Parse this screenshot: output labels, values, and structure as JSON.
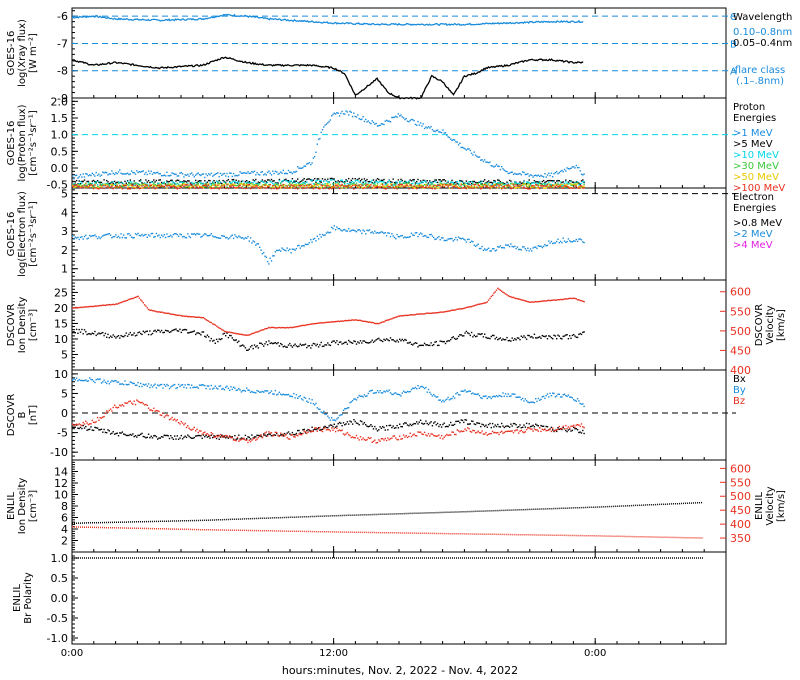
{
  "x_axis": {
    "ticks": [
      "0:00",
      "12:00",
      "0:00"
    ],
    "tick_hours": [
      0,
      12,
      24
    ],
    "range_hours": [
      0,
      30
    ],
    "title": "hours:minutes, Nov.  2, 2022 - Nov.  4, 2022"
  },
  "panels": [
    {
      "id": "xray",
      "ylabel": [
        "GOES-16",
        "log(Xray flux)",
        "[W m⁻²]"
      ],
      "yticks": [
        "-6",
        "-7",
        "-8",
        "-9"
      ],
      "ytick_values": [
        -6,
        -7,
        -8,
        -9
      ],
      "ylim": [
        -9.0,
        -5.7
      ],
      "hlines": [
        {
          "value": -6,
          "color": "#1a8cdc",
          "right_label": "C"
        },
        {
          "value": -7,
          "color": "#1a8cdc",
          "right_label": "B"
        },
        {
          "value": -8,
          "color": "#1a8cdc",
          "right_label": "A"
        }
      ],
      "legend_title": "Wavelength",
      "legend": [
        {
          "text": "0.10–0.8nm",
          "color": "#1a8cdc"
        },
        {
          "text": "0.05–0.4nm",
          "color": "#000000"
        }
      ],
      "note": [
        "flare class",
        "(.1–.8nm)"
      ],
      "note_color": "#1a8cdc"
    },
    {
      "id": "proton",
      "ylabel": [
        "GOES-16",
        "log(Proton flux)",
        "[cm⁻²s⁻¹sr⁻¹]"
      ],
      "yticks": [
        "2.0",
        "1.5",
        "1.0",
        "0.5",
        "0.0",
        "-0.5"
      ],
      "ytick_values": [
        2.0,
        1.5,
        1.0,
        0.5,
        0.0,
        -0.5
      ],
      "ylim": [
        -0.6,
        2.1
      ],
      "hlines": [
        {
          "value": 1.0,
          "color": "#00d8e8"
        }
      ],
      "legend_title": "Proton Energies",
      "legend": [
        {
          "text": ">1 MeV",
          "color": "#1a8cdc"
        },
        {
          "text": ">5 MeV",
          "color": "#000000"
        },
        {
          "text": ">10 MeV",
          "color": "#00d8e8"
        },
        {
          "text": ">30 MeV",
          "color": "#3cc83c"
        },
        {
          "text": ">50 MeV",
          "color": "#e8c800"
        },
        {
          "text": ">100 MeV",
          "color": "#e83020"
        }
      ]
    },
    {
      "id": "electron",
      "ylabel": [
        "GOES-16",
        "log(Electron flux)",
        "[cm⁻²s⁻¹sr⁻¹]"
      ],
      "yticks": [
        "5",
        "4",
        "3",
        "2",
        "1"
      ],
      "ytick_values": [
        5,
        4,
        3,
        2,
        1
      ],
      "ylim": [
        0.4,
        5.3
      ],
      "hlines": [
        {
          "value": 5.0,
          "color": "#000000"
        }
      ],
      "legend_title": "Electron Energies",
      "legend": [
        {
          "text": ">0.8 MeV",
          "color": "#000000"
        },
        {
          "text": ">2 MeV",
          "color": "#1a8cdc"
        },
        {
          "text": ">4 MeV",
          "color": "#e020e0"
        }
      ]
    },
    {
      "id": "dscovr_plasma",
      "ylabel": [
        "DSCOVR",
        "Ion Density",
        "[cm⁻³]"
      ],
      "yticks": [
        "25",
        "20",
        "15",
        "10",
        "5"
      ],
      "ytick_values": [
        25,
        20,
        15,
        10,
        5
      ],
      "ylim": [
        0,
        29
      ],
      "right_ylabel": [
        "DSCOVR",
        "Velocity",
        "[km/s]"
      ],
      "right_yticks": [
        "600",
        "550",
        "500",
        "450",
        "400"
      ],
      "right_ytick_values": [
        600,
        550,
        500,
        450,
        400
      ],
      "right_ylim": [
        400,
        630
      ],
      "right_color": "#e83020"
    },
    {
      "id": "dscovr_mag",
      "ylabel": [
        "DSCOVR",
        "B",
        "[nT]"
      ],
      "yticks": [
        "10",
        "5",
        "0",
        "-5",
        "-10"
      ],
      "ytick_values": [
        10,
        5,
        0,
        -5,
        -10
      ],
      "ylim": [
        -12,
        11
      ],
      "hlines": [
        {
          "value": 0,
          "color": "#000000"
        }
      ],
      "legend": [
        {
          "text": "Bx",
          "color": "#000000"
        },
        {
          "text": "By",
          "color": "#1a8cdc"
        },
        {
          "text": "Bz",
          "color": "#e83020"
        }
      ]
    },
    {
      "id": "enlil_plasma",
      "ylabel": [
        "ENLIL",
        "Ion Density",
        "[cm⁻³]"
      ],
      "yticks": [
        "14",
        "12",
        "10",
        "8",
        "6",
        "4",
        "2"
      ],
      "ytick_values": [
        14,
        12,
        10,
        8,
        6,
        4,
        2
      ],
      "ylim": [
        0,
        16
      ],
      "right_ylabel": [
        "ENLIL",
        "Velocity",
        "[km/s]"
      ],
      "right_yticks": [
        "600",
        "550",
        "500",
        "450",
        "400",
        "350"
      ],
      "right_ytick_values": [
        600,
        550,
        500,
        450,
        400,
        350
      ],
      "right_ylim": [
        300,
        630
      ],
      "right_color": "#e83020"
    },
    {
      "id": "enlil_polarity",
      "ylabel": [
        "ENLIL",
        "Br Polarity"
      ],
      "yticks": [
        "1.0",
        "0.5",
        "0.0",
        "-0.5",
        "-1.0"
      ],
      "ytick_values": [
        1.0,
        0.5,
        0.0,
        -0.5,
        -1.0
      ],
      "ylim": [
        -1.15,
        1.15
      ]
    }
  ],
  "chart_data": [
    {
      "type": "line",
      "panel": "xray",
      "x_units": "hours since Nov 2, 2022 0:00",
      "series": [
        {
          "name": "0.10–0.8nm",
          "color": "#1a8cdc",
          "x": [
            0,
            1,
            2,
            4,
            6,
            7,
            8,
            9,
            10,
            12,
            14,
            16,
            18,
            20,
            22,
            23.5
          ],
          "y": [
            -6.05,
            -6.0,
            -6.1,
            -6.15,
            -6.1,
            -5.95,
            -6.0,
            -6.1,
            -6.15,
            -6.25,
            -6.3,
            -6.3,
            -6.3,
            -6.25,
            -6.2,
            -6.2
          ]
        },
        {
          "name": "0.05–0.4nm",
          "color": "#000000",
          "x": [
            0,
            1,
            2,
            3,
            4,
            6,
            7,
            8,
            9,
            10,
            11,
            12,
            12.5,
            13,
            13.5,
            14,
            14.5,
            15,
            16,
            16.5,
            17,
            17.5,
            18,
            18.5,
            19,
            20,
            21,
            22,
            23,
            23.5
          ],
          "y": [
            -7.6,
            -7.8,
            -7.7,
            -7.8,
            -7.9,
            -7.8,
            -7.5,
            -7.7,
            -7.8,
            -7.8,
            -7.8,
            -7.9,
            -8.1,
            -8.9,
            -8.6,
            -8.3,
            -8.8,
            -9.0,
            -9.0,
            -8.2,
            -8.4,
            -8.9,
            -8.2,
            -8.1,
            -7.9,
            -7.8,
            -7.6,
            -7.6,
            -7.7,
            -7.7
          ]
        }
      ]
    },
    {
      "type": "scatter",
      "panel": "proton",
      "series": [
        {
          "name": ">1 MeV",
          "color": "#1a8cdc",
          "x": [
            0,
            2,
            4,
            6,
            8,
            10,
            11,
            11.5,
            12,
            12.5,
            13,
            14,
            15,
            16,
            17,
            18,
            19,
            20,
            21,
            22,
            23,
            23.5
          ],
          "y": [
            -0.25,
            -0.1,
            -0.15,
            -0.2,
            -0.15,
            -0.1,
            0.2,
            1.3,
            1.6,
            1.7,
            1.6,
            1.3,
            1.6,
            1.3,
            1.1,
            0.6,
            0.2,
            -0.1,
            -0.2,
            -0.2,
            0.1,
            -0.2
          ]
        },
        {
          "name": ">5 MeV",
          "color": "#000000",
          "x": [
            0,
            6,
            12,
            18,
            23.5
          ],
          "y": [
            -0.4,
            -0.4,
            -0.35,
            -0.4,
            -0.4
          ]
        },
        {
          "name": ">10 MeV",
          "color": "#00d8e8",
          "x": [
            0,
            6,
            12,
            18,
            23.5
          ],
          "y": [
            -0.45,
            -0.45,
            -0.4,
            -0.45,
            -0.45
          ]
        },
        {
          "name": ">30 MeV",
          "color": "#3cc83c",
          "x": [
            0,
            6,
            12,
            18,
            23.5
          ],
          "y": [
            -0.5,
            -0.5,
            -0.5,
            -0.5,
            -0.5
          ]
        },
        {
          "name": ">50 MeV",
          "color": "#e8c800",
          "x": [
            0,
            6,
            12,
            18,
            23.5
          ],
          "y": [
            -0.52,
            -0.52,
            -0.52,
            -0.52,
            -0.52
          ]
        },
        {
          "name": ">100 MeV",
          "color": "#e83020",
          "x": [
            0,
            6,
            12,
            18,
            23.5
          ],
          "y": [
            -0.54,
            -0.54,
            -0.54,
            -0.54,
            -0.54
          ]
        }
      ]
    },
    {
      "type": "scatter",
      "panel": "electron",
      "series": [
        {
          "name": ">2 MeV",
          "color": "#1a8cdc",
          "x": [
            0,
            2,
            4,
            6,
            8,
            8.5,
            9,
            9.5,
            10,
            11,
            12,
            13,
            14,
            15,
            16,
            17,
            18,
            19,
            20,
            21,
            22,
            23,
            23.5
          ],
          "y": [
            2.7,
            2.8,
            2.8,
            2.8,
            2.7,
            2.3,
            1.4,
            2.1,
            2.0,
            2.5,
            3.2,
            3.0,
            3.0,
            2.7,
            2.9,
            2.6,
            2.6,
            2.0,
            2.3,
            2.0,
            2.5,
            2.6,
            2.5
          ]
        }
      ]
    },
    {
      "type": "scatter",
      "panel": "dscovr_plasma",
      "series": [
        {
          "name": "Ion Density",
          "axis": "left",
          "color": "#000000",
          "x": [
            0,
            2,
            3,
            5,
            6,
            6.5,
            7,
            8,
            9,
            10,
            11,
            12,
            13,
            14,
            15,
            16,
            17,
            18,
            19,
            20,
            21,
            22,
            23,
            23.5
          ],
          "y": [
            13,
            11,
            12,
            13,
            12,
            9,
            12,
            7,
            9,
            8,
            8,
            9,
            9,
            10,
            10,
            8,
            9,
            12,
            11,
            10,
            11,
            11,
            11,
            12
          ]
        },
        {
          "name": "Velocity",
          "axis": "right",
          "color": "#e83020",
          "x": [
            0,
            2,
            3,
            3.5,
            4,
            5,
            6,
            7,
            8,
            9,
            10,
            11,
            12,
            13,
            14,
            15,
            16,
            17,
            18,
            19,
            19.5,
            20,
            21,
            22,
            23,
            23.5
          ],
          "y": [
            560,
            570,
            590,
            555,
            550,
            540,
            535,
            500,
            490,
            510,
            510,
            520,
            525,
            530,
            520,
            540,
            545,
            550,
            560,
            575,
            610,
            590,
            575,
            580,
            585,
            575
          ]
        }
      ]
    },
    {
      "type": "scatter",
      "panel": "dscovr_mag",
      "series": [
        {
          "name": "Bx",
          "color": "#000000",
          "x": [
            0,
            2,
            4,
            6,
            8,
            10,
            11,
            12,
            13,
            14,
            15,
            16,
            17,
            18,
            19,
            20,
            21,
            22,
            23,
            23.5
          ],
          "y": [
            -3,
            -5,
            -6,
            -6,
            -6,
            -5,
            -4,
            -3,
            -2,
            -4,
            -3,
            -2,
            -3,
            -2,
            -3,
            -3,
            -3,
            -4,
            -4,
            -5
          ]
        },
        {
          "name": "By",
          "color": "#1a8cdc",
          "x": [
            0,
            2,
            4,
            6,
            8,
            10,
            11,
            12,
            13,
            14,
            15,
            16,
            17,
            18,
            19,
            20,
            21,
            22,
            23,
            23.5
          ],
          "y": [
            9,
            8,
            7,
            7,
            6,
            5,
            3,
            -2,
            4,
            6,
            5,
            7,
            3,
            6,
            4,
            5,
            3,
            5,
            4,
            2
          ]
        },
        {
          "name": "Bz",
          "color": "#e83020",
          "x": [
            0,
            1,
            2,
            3,
            4,
            6,
            7,
            8,
            9,
            10,
            11,
            12,
            13,
            14,
            15,
            16,
            17,
            18,
            19,
            20,
            21,
            22,
            23,
            23.5
          ],
          "y": [
            -3,
            -2,
            2,
            3,
            0,
            -5,
            -6,
            -7,
            -5,
            -6,
            -4,
            -4,
            -6,
            -7,
            -6,
            -5,
            -6,
            -4,
            -5,
            -5,
            -4,
            -4,
            -3,
            -3
          ]
        }
      ]
    },
    {
      "type": "line",
      "panel": "enlil_plasma",
      "series": [
        {
          "name": "Ion Density",
          "axis": "left",
          "color": "#000000",
          "x": [
            0,
            6,
            12,
            18,
            24,
            29
          ],
          "y": [
            5.0,
            5.5,
            6.3,
            7.0,
            7.8,
            8.6
          ]
        },
        {
          "name": "Velocity",
          "axis": "right",
          "color": "#e83020",
          "x": [
            0,
            6,
            12,
            18,
            24,
            29
          ],
          "y": [
            390,
            380,
            372,
            365,
            358,
            350
          ]
        }
      ]
    },
    {
      "type": "line",
      "panel": "enlil_polarity",
      "series": [
        {
          "name": "Br Polarity",
          "color": "#000000",
          "x": [
            0,
            29
          ],
          "y": [
            1.0,
            1.0
          ]
        }
      ]
    }
  ]
}
